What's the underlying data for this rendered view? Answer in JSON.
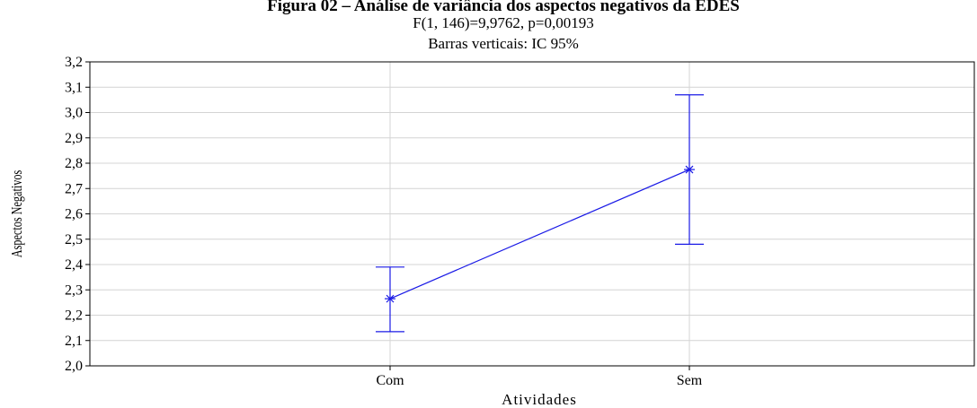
{
  "chart_data": {
    "type": "line",
    "title": "Figura 02 – Análise de variância dos aspectos negativos da EDES",
    "subtitle_lines": [
      "F(1, 146)=9,9762, p=0,00193",
      "Barras verticais: IC 95%"
    ],
    "xlabel": "Atividades",
    "ylabel": "Aspectos Negativos",
    "categories": [
      "Com",
      "Sem"
    ],
    "series": [
      {
        "values": [
          2.265,
          2.775
        ],
        "ci_lower": [
          2.135,
          2.48
        ],
        "ci_upper": [
          2.39,
          3.07
        ],
        "color": "#1a1ae6"
      }
    ],
    "ylim": [
      2.0,
      3.2
    ],
    "yticks": [
      2.0,
      2.1,
      2.2,
      2.3,
      2.4,
      2.5,
      2.6,
      2.7,
      2.8,
      2.9,
      3.0,
      3.1,
      3.2
    ],
    "ytick_labels": [
      "2,0",
      "2,1",
      "2,2",
      "2,3",
      "2,4",
      "2,5",
      "2,6",
      "2,7",
      "2,8",
      "2,9",
      "3,0",
      "3,1",
      "3,2"
    ],
    "grid": true,
    "grid_color": "#d4d4d4"
  }
}
